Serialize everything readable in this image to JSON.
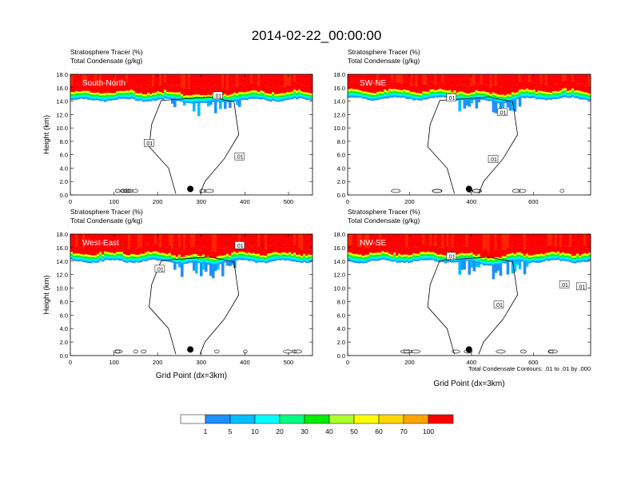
{
  "page_title": "2014-02-22_00:00:00",
  "contour_note": "Total Condensate Contours: .01 to .01 by .000",
  "colorbar": {
    "colors": [
      "#ffffff",
      "#1e90ff",
      "#00bfff",
      "#00ffff",
      "#00ff7f",
      "#00ee00",
      "#adff2f",
      "#ffff00",
      "#ffd700",
      "#ffa500",
      "#ff6a00",
      "#ff2400",
      "#ff0000"
    ],
    "labels": [
      "1",
      "5",
      "10",
      "20",
      "30",
      "40",
      "50",
      "60",
      "70",
      "100"
    ]
  },
  "chart_data": [
    {
      "type": "heatmap",
      "subtitle_line1": "Stratosphere Tracer   (%)",
      "subtitle_line2": "Total Condensate   (g/kg)",
      "panel_label": "South-North",
      "ylabel": "Height (km)",
      "xlabel": "",
      "xlim": [
        0,
        555
      ],
      "ylim": [
        0,
        18
      ],
      "x_ticks": [
        "0",
        "100",
        "200",
        "300",
        "400",
        "500"
      ],
      "x_tick_values": [
        0,
        100,
        200,
        300,
        400,
        500
      ],
      "y_ticks": [
        "0.0",
        "2.0",
        "4.0",
        "6.0",
        "8.0",
        "10.0",
        "12.0",
        "14.0",
        "16.0",
        "18.0"
      ],
      "tropopause_km": 14.2,
      "dip_center_x": 310,
      "marker_x": 275,
      "contour_labels": [
        {
          "text": ".01",
          "x": 180,
          "y": 7.7
        },
        {
          "text": ".01",
          "x": 388,
          "y": 5.7
        },
        {
          "text": ".01",
          "x": 338,
          "y": 14.8
        }
      ]
    },
    {
      "type": "heatmap",
      "subtitle_line1": "Stratosphere Tracer   (%)",
      "subtitle_line2": "Total Condensate   (g/kg)",
      "panel_label": "SW-NE",
      "ylabel": "",
      "xlabel": "",
      "xlim": [
        0,
        785
      ],
      "ylim": [
        0,
        18
      ],
      "x_ticks": [
        "0",
        "200",
        "400",
        "600"
      ],
      "x_tick_values": [
        0,
        200,
        400,
        600
      ],
      "y_ticks": [
        "0.0",
        "2.0",
        "4.0",
        "6.0",
        "8.0",
        "10.0",
        "12.0",
        "14.0",
        "16.0",
        "18.0"
      ],
      "tropopause_km": 14.4,
      "dip_center_x": 470,
      "marker_x": 392,
      "contour_labels": [
        {
          "text": ".01",
          "x": 335,
          "y": 14.5
        },
        {
          "text": ".01",
          "x": 500,
          "y": 12.3
        },
        {
          "text": ".01",
          "x": 470,
          "y": 5.3
        }
      ]
    },
    {
      "type": "heatmap",
      "subtitle_line1": "Stratosphere Tracer   (%)",
      "subtitle_line2": "Total Condensate   (g/kg)",
      "panel_label": "West-East",
      "ylabel": "Height (km)",
      "xlabel": "Grid Point (dx=3km)",
      "xlim": [
        0,
        555
      ],
      "ylim": [
        0,
        18
      ],
      "x_ticks": [
        "0",
        "100",
        "200",
        "300",
        "400",
        "500"
      ],
      "x_tick_values": [
        0,
        100,
        200,
        300,
        400,
        500
      ],
      "y_ticks": [
        "0.0",
        "2.0",
        "4.0",
        "6.0",
        "8.0",
        "10.0",
        "12.0",
        "14.0",
        "16.0",
        "18.0"
      ],
      "tropopause_km": 14.0,
      "dip_center_x": 300,
      "marker_x": 275,
      "contour_labels": [
        {
          "text": ".01",
          "x": 205,
          "y": 12.8
        },
        {
          "text": ".01",
          "x": 388,
          "y": 16.3
        }
      ]
    },
    {
      "type": "heatmap",
      "subtitle_line1": "Stratosphere Tracer   (%)",
      "subtitle_line2": "Total Condensate   (g/kg)",
      "panel_label": "NW-SE",
      "ylabel": "",
      "xlabel": "Grid Point (dx=3km)",
      "xlim": [
        0,
        785
      ],
      "ylim": [
        0,
        18
      ],
      "x_ticks": [
        "0",
        "200",
        "400",
        "600"
      ],
      "x_tick_values": [
        0,
        200,
        400,
        600
      ],
      "y_ticks": [
        "0.0",
        "2.0",
        "4.0",
        "6.0",
        "8.0",
        "10.0",
        "12.0",
        "14.0",
        "16.0",
        "18.0"
      ],
      "tropopause_km": 14.0,
      "dip_center_x": 470,
      "marker_x": 392,
      "contour_labels": [
        {
          "text": ".01",
          "x": 335,
          "y": 14.7
        },
        {
          "text": ".01",
          "x": 488,
          "y": 7.5
        },
        {
          "text": ".01",
          "x": 700,
          "y": 10.5
        },
        {
          "text": ".01",
          "x": 755,
          "y": 10.2
        }
      ]
    }
  ]
}
